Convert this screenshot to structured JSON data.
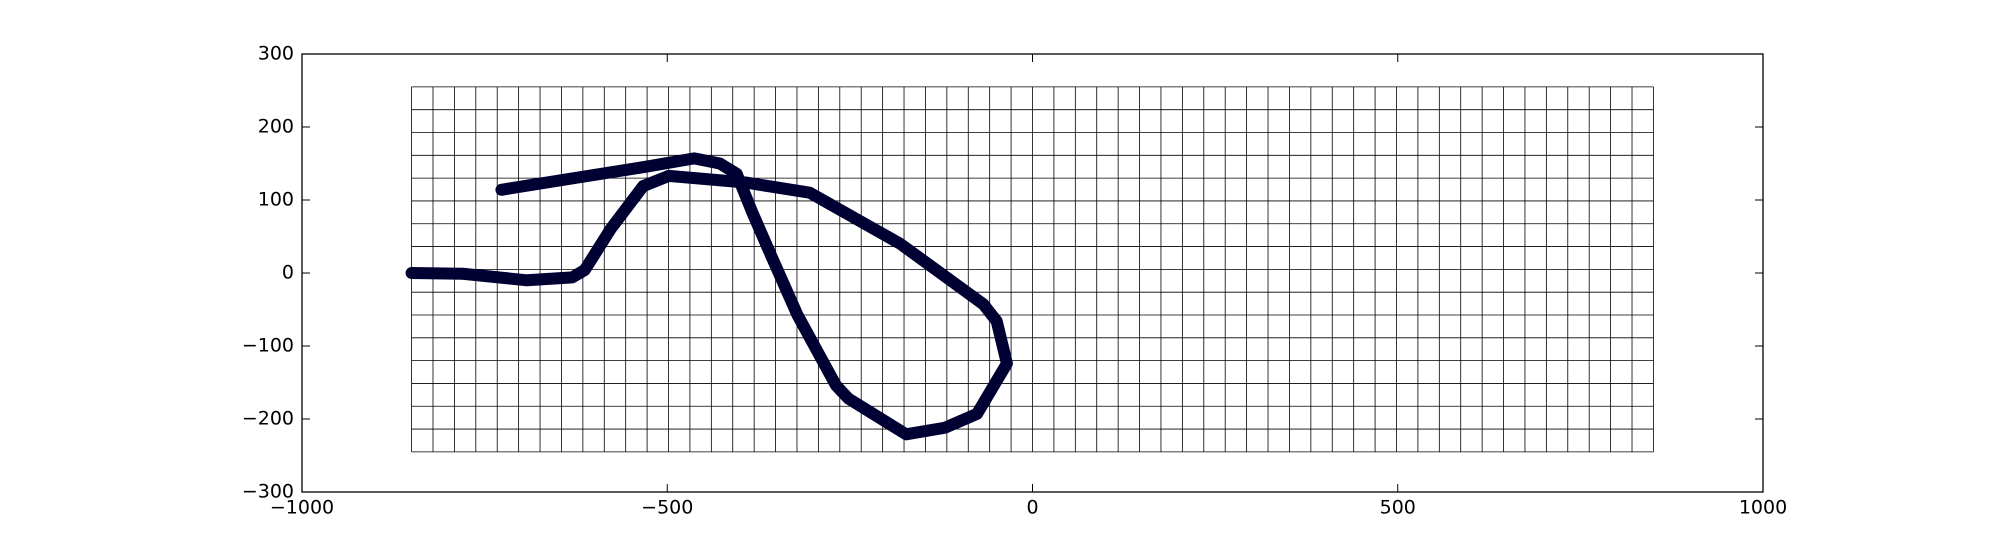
{
  "chart_data": {
    "type": "line",
    "x": [
      -850,
      -780,
      -692,
      -630,
      -613,
      -577,
      -533,
      -498,
      -393,
      -305,
      -181,
      -67,
      -49,
      -35,
      -76,
      -120,
      -173,
      -252,
      -269,
      -322,
      -357,
      -384,
      -405,
      -428,
      -463,
      -533,
      -621,
      -727
    ],
    "series": [
      {
        "color": "#000033",
        "values": [
          0,
          -1,
          -10,
          -6,
          4,
          61,
          119,
          133,
          124,
          110,
          40,
          -43,
          -66,
          -124,
          -193,
          -212,
          -221,
          -172,
          -154,
          -57,
          22,
          84,
          136,
          150,
          157,
          145,
          131,
          114
        ]
      }
    ],
    "xlim": [
      -1000,
      1000
    ],
    "xticks": [
      {
        "value": -1000,
        "label": "−1000"
      },
      {
        "value": -500,
        "label": "−500"
      },
      0,
      500,
      1000
    ],
    "ylim": [
      -300,
      300
    ],
    "yticks": [
      {
        "value": -300,
        "label": "−300"
      },
      {
        "value": -200,
        "label": "−200"
      },
      {
        "value": -100,
        "label": "−100"
      },
      0,
      100,
      200,
      300
    ],
    "mesh_xlim": [
      -850,
      850
    ],
    "mesh_ylim": [
      -245,
      255
    ],
    "mesh_columns": 58,
    "mesh_rows": 16
  }
}
